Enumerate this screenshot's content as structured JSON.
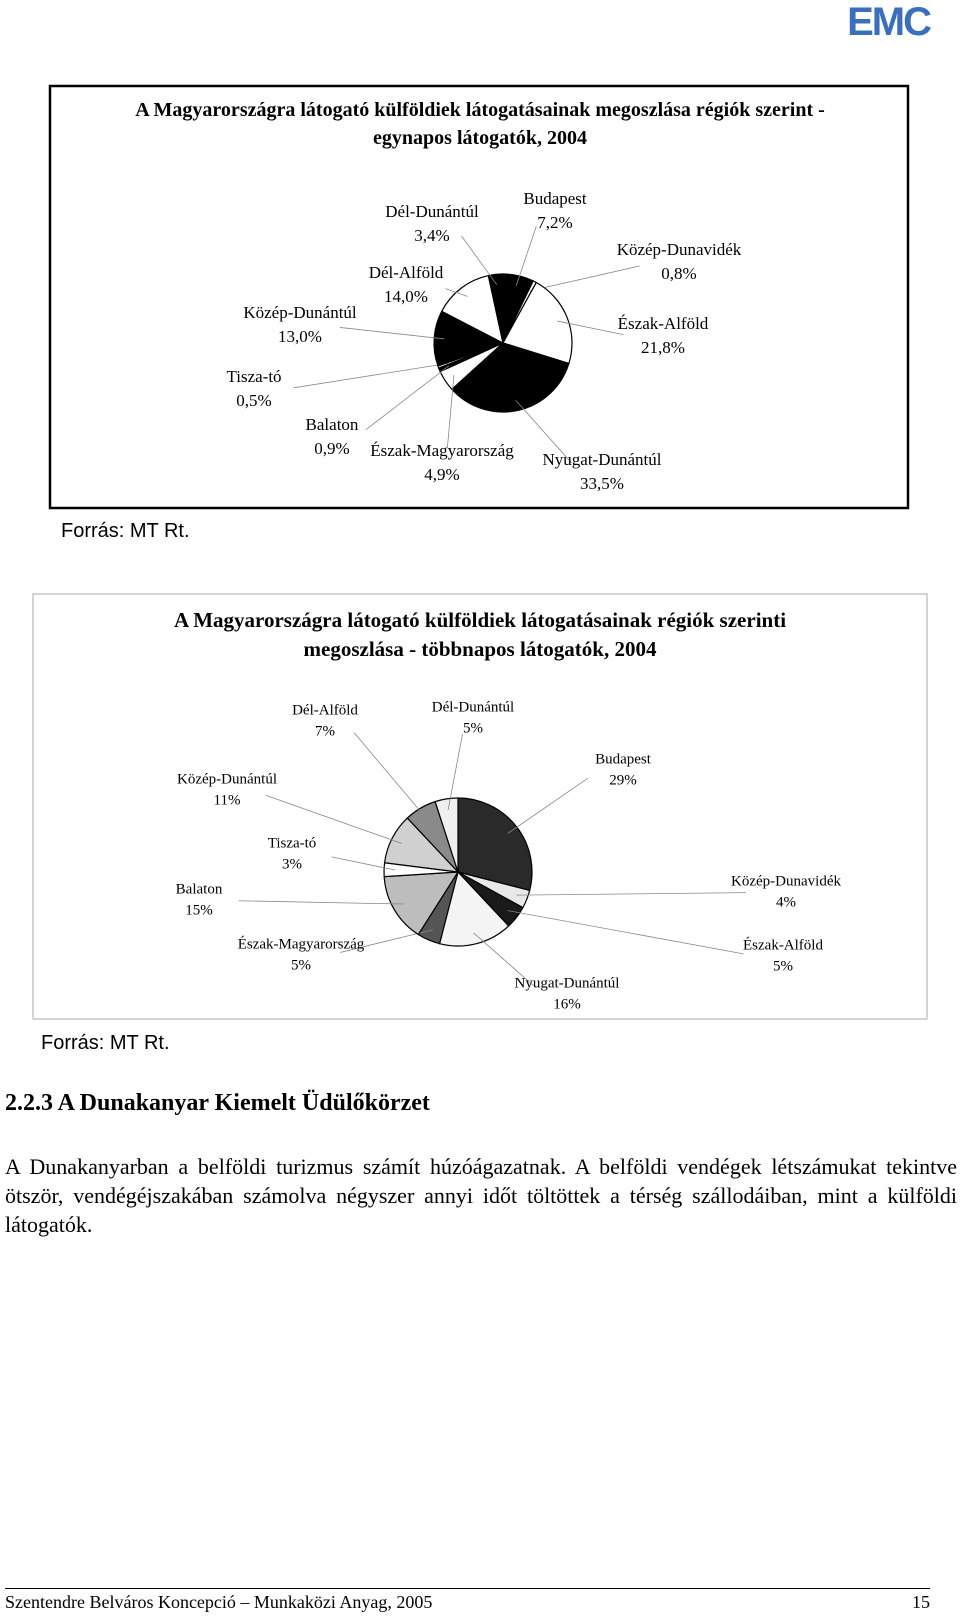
{
  "logo": "EMC",
  "chart_data": [
    {
      "type": "pie",
      "title": "A Magyarországra látogató külföldiek látogatásainak megoszlása régiók szerint - egynapos látogatók, 2004",
      "categories": [
        "Budapest",
        "Közép-Dunavidék",
        "Észak-Alföld",
        "Nyugat-Dunántúl",
        "Észak-Magyarország",
        "Balaton",
        "Tisza-tó",
        "Közép-Dunántúl",
        "Dél-Alföld",
        "Dél-Dunántúl"
      ],
      "values": [
        7.2,
        0.8,
        21.8,
        33.5,
        4.9,
        0.9,
        0.5,
        13.0,
        14.0,
        3.4
      ],
      "value_labels": [
        "7,2%",
        "0,8%",
        "21,8%",
        "33,5%",
        "4,9%",
        "0,9%",
        "0,5%",
        "13,0%",
        "14,0%",
        "3,4%"
      ],
      "colors": [
        "#000000",
        "#ffffff",
        "#ffffff",
        "#000000",
        "#ffffff",
        "#000000",
        "#ffffff",
        "#000000",
        "#ffffff",
        "#000000"
      ]
    },
    {
      "type": "pie",
      "title": "A Magyarországra látogató külföldiek látogatásainak régiók szerinti megoszlása - többnapos látogatók, 2004",
      "categories": [
        "Budapest",
        "Közép-Dunavidék",
        "Észak-Alföld",
        "Nyugat-Dunántúl",
        "Észak-Magyarország",
        "Balaton",
        "Tisza-tó",
        "Közép-Dunántúl",
        "Dél-Alföld",
        "Dél-Dunántúl"
      ],
      "values": [
        29,
        4,
        5,
        16,
        5,
        15,
        3,
        11,
        7,
        5
      ],
      "value_labels": [
        "29%",
        "4%",
        "5%",
        "16%",
        "5%",
        "15%",
        "3%",
        "11%",
        "7%",
        "5%"
      ],
      "colors": [
        "#2a2a2a",
        "#e8e8e8",
        "#1a1a1a",
        "#f4f4f4",
        "#555555",
        "#bdbdbd",
        "#ffffff",
        "#d0d0d0",
        "#8a8a8a",
        "#efefef"
      ]
    }
  ],
  "sources": [
    "Forrás: MT Rt.",
    "Forrás: MT Rt."
  ],
  "heading": "2.2.3 A Dunakanyar Kiemelt Üdülőkörzet",
  "paragraph": "A Dunakanyarban a belföldi turizmus számít húzóágazatnak. A belföldi vendégek létszámukat tekintve ötször, vendégéjszakában számolva négyszer annyi időt töltöttek a térség szállodáiban, mint a külföldi látogatók.",
  "footer": {
    "left": "Szentendre Belváros Koncepció – Munkaközi Anyag, 2005",
    "page": "15"
  }
}
